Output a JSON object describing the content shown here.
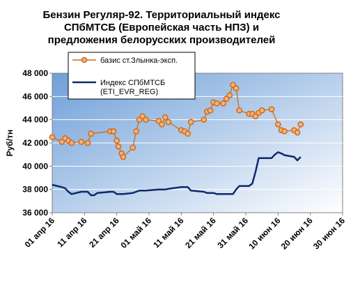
{
  "chart_data": {
    "type": "line",
    "title_lines": [
      "Бензин Регуляр-92. Территориальный индекс",
      "СПбМТСБ (Европейская часть НПЗ) и",
      "предложения белорусских производителей"
    ],
    "ylabel": "Руб/тн",
    "xlabel": "",
    "ylim": [
      36000,
      48000
    ],
    "y_ticks": [
      36000,
      38000,
      40000,
      42000,
      44000,
      46000,
      48000
    ],
    "y_tick_labels": [
      "36 000",
      "38 000",
      "40 000",
      "42 000",
      "44 000",
      "46 000",
      "48 000"
    ],
    "x_ticks": [
      0,
      10,
      20,
      30,
      40,
      50,
      60,
      70,
      80,
      90
    ],
    "x_tick_labels": [
      "01 апр 16",
      "11 апр 16",
      "21 апр 16",
      "01 май 16",
      "11 май 16",
      "21 май 16",
      "31 май 16",
      "10 июн 16",
      "20 июн 16",
      "30 июн 16"
    ],
    "xlim": [
      0,
      90
    ],
    "grid": true,
    "legend_position": "top-left",
    "series": [
      {
        "name": "базис ст.Злынка-эксп.",
        "color": "#cc6a1a",
        "marker": "circle",
        "points": [
          [
            0,
            42500
          ],
          [
            3,
            42100
          ],
          [
            4,
            42400
          ],
          [
            5,
            42200
          ],
          [
            6,
            42000
          ],
          [
            9,
            42100
          ],
          [
            11,
            42000
          ],
          [
            12,
            42800
          ],
          [
            18,
            43000
          ],
          [
            19,
            43000
          ],
          [
            20,
            42200
          ],
          [
            20.5,
            41700
          ],
          [
            21.5,
            41100
          ],
          [
            22,
            40800
          ],
          [
            25,
            41600
          ],
          [
            26,
            43000
          ],
          [
            27,
            44000
          ],
          [
            28,
            44300
          ],
          [
            29,
            44000
          ],
          [
            33,
            43900
          ],
          [
            34,
            43600
          ],
          [
            35,
            44200
          ],
          [
            36,
            43800
          ],
          [
            40,
            43100
          ],
          [
            41,
            43000
          ],
          [
            42,
            42800
          ],
          [
            43,
            43800
          ],
          [
            47,
            44000
          ],
          [
            48,
            44700
          ],
          [
            49,
            44800
          ],
          [
            50,
            45500
          ],
          [
            51,
            45400
          ],
          [
            53,
            45400
          ],
          [
            54,
            45800
          ],
          [
            55,
            46100
          ],
          [
            56,
            47000
          ],
          [
            57,
            46700
          ],
          [
            58,
            44800
          ],
          [
            61,
            44500
          ],
          [
            62,
            44500
          ],
          [
            63,
            44300
          ],
          [
            64,
            44600
          ],
          [
            65,
            44800
          ],
          [
            68,
            44900
          ],
          [
            70,
            43600
          ],
          [
            71,
            43100
          ],
          [
            72,
            43000
          ],
          [
            75,
            43100
          ],
          [
            76,
            42900
          ],
          [
            77,
            43600
          ]
        ]
      },
      {
        "name": "Индекс СПбМТСБ (ETI_EVR_REG)",
        "color": "#0d2a6b",
        "marker": "none",
        "points": [
          [
            0,
            38400
          ],
          [
            3,
            38200
          ],
          [
            4,
            38100
          ],
          [
            5,
            37800
          ],
          [
            6,
            37600
          ],
          [
            9,
            37800
          ],
          [
            11,
            37800
          ],
          [
            12,
            37500
          ],
          [
            13,
            37500
          ],
          [
            14,
            37700
          ],
          [
            18,
            37800
          ],
          [
            19,
            37800
          ],
          [
            20,
            37600
          ],
          [
            21,
            37600
          ],
          [
            22,
            37600
          ],
          [
            25,
            37700
          ],
          [
            26,
            37800
          ],
          [
            27,
            37900
          ],
          [
            28,
            37900
          ],
          [
            29,
            37900
          ],
          [
            33,
            38000
          ],
          [
            34,
            38000
          ],
          [
            35,
            38000
          ],
          [
            36,
            38050
          ],
          [
            40,
            38200
          ],
          [
            41,
            38200
          ],
          [
            42,
            38200
          ],
          [
            43,
            37900
          ],
          [
            47,
            37800
          ],
          [
            48,
            37700
          ],
          [
            49,
            37700
          ],
          [
            50,
            37700
          ],
          [
            51,
            37600
          ],
          [
            53,
            37600
          ],
          [
            54,
            37600
          ],
          [
            55,
            37600
          ],
          [
            56,
            37600
          ],
          [
            57,
            38000
          ],
          [
            58,
            38300
          ],
          [
            61,
            38300
          ],
          [
            62,
            38500
          ],
          [
            63,
            39500
          ],
          [
            64,
            40700
          ],
          [
            65,
            40700
          ],
          [
            68,
            40700
          ],
          [
            69,
            41000
          ],
          [
            70,
            41200
          ],
          [
            71,
            41100
          ],
          [
            72,
            40950
          ],
          [
            75,
            40800
          ],
          [
            76,
            40500
          ],
          [
            77,
            40800
          ]
        ]
      }
    ]
  }
}
